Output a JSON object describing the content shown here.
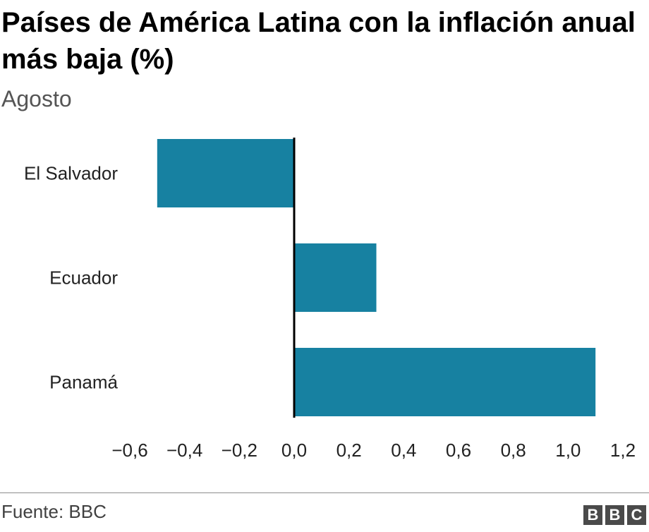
{
  "title": "Países de América Latina con la inflación anual más baja (%)",
  "subtitle": "Agosto",
  "source": "Fuente: BBC",
  "logo": [
    "B",
    "B",
    "C"
  ],
  "colors": {
    "bar": "#1781a1",
    "axis": "#000000",
    "text": "#222222"
  },
  "chart_data": {
    "type": "bar",
    "orientation": "horizontal",
    "categories": [
      "El Salvador",
      "Ecuador",
      "Panamá"
    ],
    "values": [
      -0.5,
      0.3,
      1.1
    ],
    "xlim": [
      -0.6,
      1.2
    ],
    "xticks": [
      "−0,6",
      "−0,4",
      "−0,2",
      "0,0",
      "0,2",
      "0,4",
      "0,6",
      "0,8",
      "1,0",
      "1,2"
    ],
    "grid": false,
    "legend": "none"
  }
}
